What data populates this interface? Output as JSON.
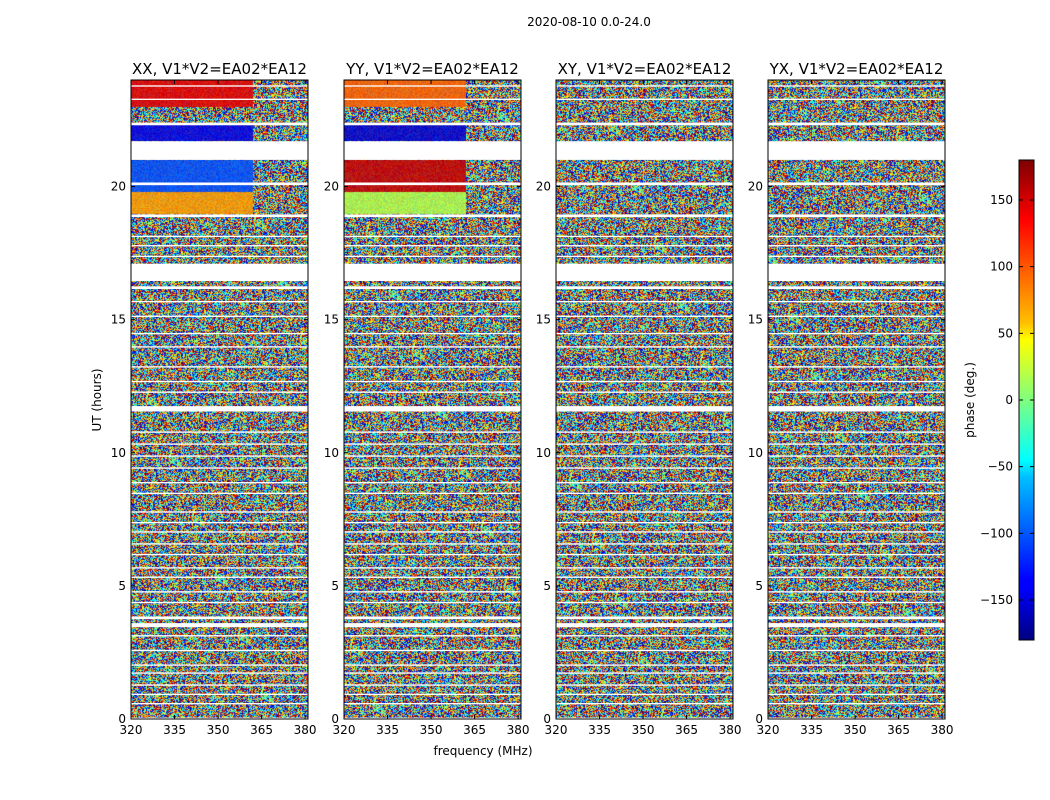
{
  "chart_data": {
    "type": "heatmap",
    "suptitle": "2020-08-10 0.0-24.0",
    "xlabel": "frequency (MHz)",
    "ylabel": "UT (hours)",
    "xlim": [
      320,
      381
    ],
    "ylim": [
      0,
      24
    ],
    "xticks": [
      "320",
      "335",
      "350",
      "365",
      "380"
    ],
    "xtick_values": [
      320,
      335,
      350,
      365,
      380
    ],
    "yticks": [
      "0",
      "5",
      "10",
      "15",
      "20"
    ],
    "ytick_values": [
      0,
      5,
      10,
      15,
      20
    ],
    "colormap": "jet",
    "colorbar": {
      "label": "phase (deg.)",
      "range": [
        -180,
        180
      ],
      "ticks": [
        "−150",
        "−100",
        "−50",
        "0",
        "50",
        "100",
        "150"
      ],
      "tick_values": [
        -150,
        -100,
        -50,
        0,
        50,
        100,
        150
      ]
    },
    "panels": [
      {
        "title": "XX, V1*V2=EA02*EA12"
      },
      {
        "title": "YY, V1*V2=EA02*EA12"
      },
      {
        "title": "XY, V1*V2=EA02*EA12"
      },
      {
        "title": "YX, V1*V2=EA02*EA12"
      }
    ],
    "flagged_ut_ranges": [
      [
        0.0,
        0.05
      ],
      [
        0.55,
        0.6
      ],
      [
        0.9,
        0.95
      ],
      [
        1.25,
        1.3
      ],
      [
        1.7,
        1.75
      ],
      [
        2.0,
        2.05
      ],
      [
        2.55,
        2.6
      ],
      [
        3.1,
        3.15
      ],
      [
        3.45,
        3.6
      ],
      [
        3.75,
        3.85
      ],
      [
        4.35,
        4.4
      ],
      [
        4.75,
        4.8
      ],
      [
        5.3,
        5.35
      ],
      [
        5.65,
        5.7
      ],
      [
        6.15,
        6.2
      ],
      [
        6.55,
        6.6
      ],
      [
        7.0,
        7.05
      ],
      [
        7.35,
        7.4
      ],
      [
        7.75,
        7.8
      ],
      [
        8.45,
        8.5
      ],
      [
        8.85,
        8.9
      ],
      [
        9.4,
        9.45
      ],
      [
        9.85,
        9.9
      ],
      [
        10.3,
        10.35
      ],
      [
        10.75,
        10.8
      ],
      [
        11.55,
        11.75
      ],
      [
        12.25,
        12.3
      ],
      [
        12.65,
        12.7
      ],
      [
        13.2,
        13.25
      ],
      [
        13.95,
        14.0
      ],
      [
        14.45,
        14.5
      ],
      [
        15.1,
        15.15
      ],
      [
        15.65,
        15.7
      ],
      [
        16.15,
        16.25
      ],
      [
        16.45,
        17.1
      ],
      [
        17.35,
        17.4
      ],
      [
        17.75,
        17.8
      ],
      [
        18.1,
        18.15
      ],
      [
        18.85,
        18.95
      ],
      [
        20.05,
        20.15
      ],
      [
        21.0,
        21.7
      ],
      [
        22.3,
        22.4
      ],
      [
        23.25,
        23.3
      ],
      [
        23.75,
        23.8
      ]
    ]
  }
}
